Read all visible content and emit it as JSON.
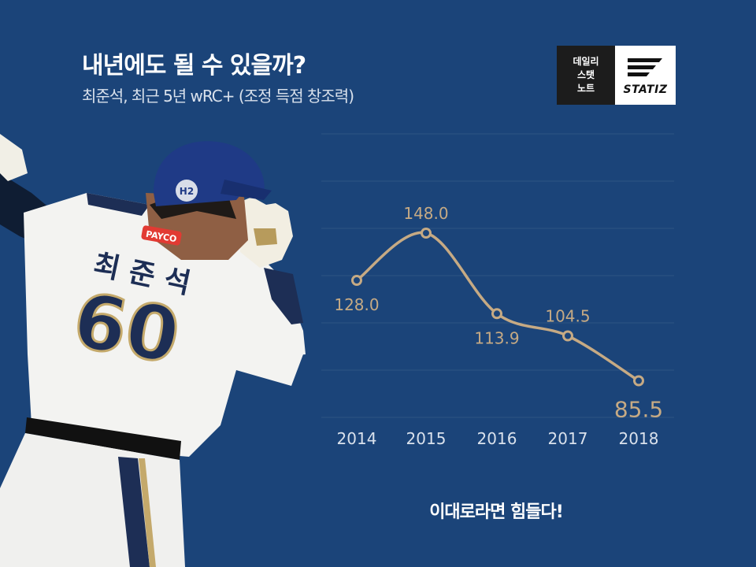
{
  "header": {
    "title": "내년에도 될 수 있을까?",
    "subtitle": "최준석, 최근 5년 wRC+ (조정 득점 창조력)"
  },
  "logo": {
    "line1": "데일리",
    "line2": "스탯",
    "line3": "노트",
    "wordmark": "STATIZ"
  },
  "player": {
    "jersey_name": "최 준 석",
    "jersey_number": "60",
    "helmet_badge": "H2",
    "sponsor": "PAYCO"
  },
  "chart_data": {
    "type": "line",
    "categories": [
      "2014",
      "2015",
      "2016",
      "2017",
      "2018"
    ],
    "values": [
      128.0,
      148.0,
      113.9,
      104.5,
      85.5
    ],
    "data_labels": [
      "128.0",
      "148.0",
      "113.9",
      "104.5",
      "85.5"
    ],
    "ylim": [
      70,
      190
    ],
    "grid": true,
    "colors": {
      "line": "#c6aa84",
      "grid": "#2e5584",
      "tick": "#d9e1ec"
    }
  },
  "tagline": "이대로라면 힘들다!"
}
